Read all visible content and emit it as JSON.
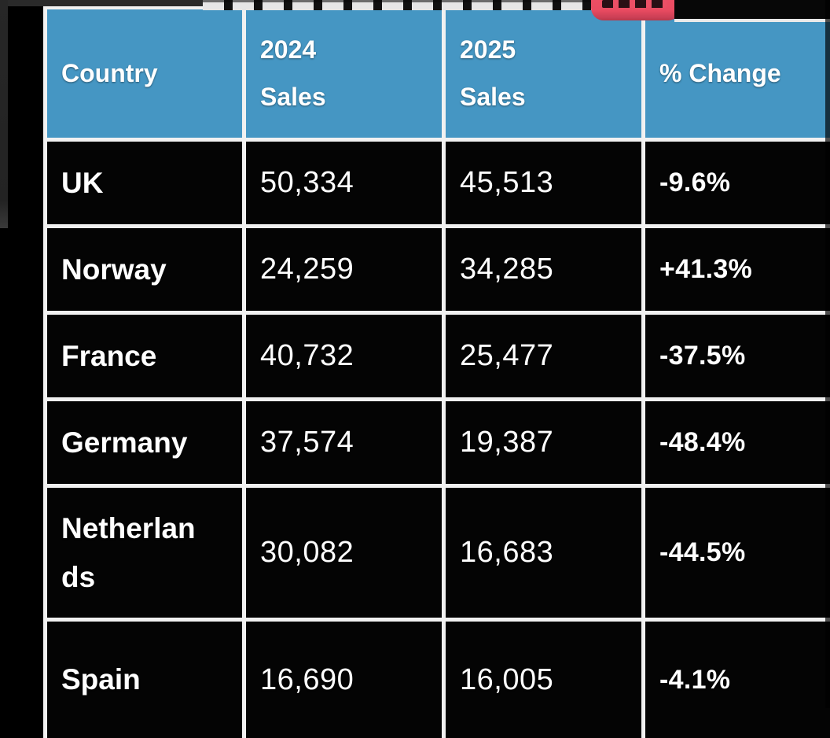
{
  "colors": {
    "page_bg": "#000000",
    "header_bg": "#4596c3",
    "cell_bg": "#040404",
    "border": "#f1f1f1",
    "text": "#ffffff",
    "highlight_red": "#ea4c62",
    "side_strip_gray": "#272727"
  },
  "table": {
    "headers": [
      "Country",
      "2024\nSales",
      "2025\nSales",
      "% Change"
    ],
    "rows": [
      {
        "country": "UK",
        "sales_2024": "50,334",
        "sales_2025": "45,513",
        "change": "-9.6%"
      },
      {
        "country": "Norway",
        "sales_2024": "24,259",
        "sales_2025": "34,285",
        "change": "+41.3%"
      },
      {
        "country": "France",
        "sales_2024": "40,732",
        "sales_2025": "25,477",
        "change": "-37.5%"
      },
      {
        "country": "Germany",
        "sales_2024": "37,574",
        "sales_2025": "19,387",
        "change": "-48.4%"
      },
      {
        "country": "Netherlands",
        "sales_2024": "30,082",
        "sales_2025": "16,683",
        "change": "-44.5%"
      },
      {
        "country": "Spain",
        "sales_2024": "16,690",
        "sales_2025": "16,005",
        "change": "-4.1%"
      }
    ]
  },
  "chart_data": {
    "type": "table",
    "columns": [
      "Country",
      "2024 Sales",
      "2025 Sales",
      "% Change"
    ],
    "rows": [
      {
        "country": "UK",
        "sales_2024": 50334,
        "sales_2025": 45513,
        "pct_change": -9.6
      },
      {
        "country": "Norway",
        "sales_2024": 24259,
        "sales_2025": 34285,
        "pct_change": 41.3
      },
      {
        "country": "France",
        "sales_2024": 40732,
        "sales_2025": 25477,
        "pct_change": -37.5
      },
      {
        "country": "Germany",
        "sales_2024": 37574,
        "sales_2025": 19387,
        "pct_change": -48.4
      },
      {
        "country": "Netherlands",
        "sales_2024": 30082,
        "sales_2025": 16683,
        "pct_change": -44.5
      },
      {
        "country": "Spain",
        "sales_2024": 16690,
        "sales_2025": 16005,
        "pct_change": -4.1
      }
    ],
    "title": "",
    "notes": "headline above table is cropped out of frame; a red highlight box marks the final cropped word"
  }
}
